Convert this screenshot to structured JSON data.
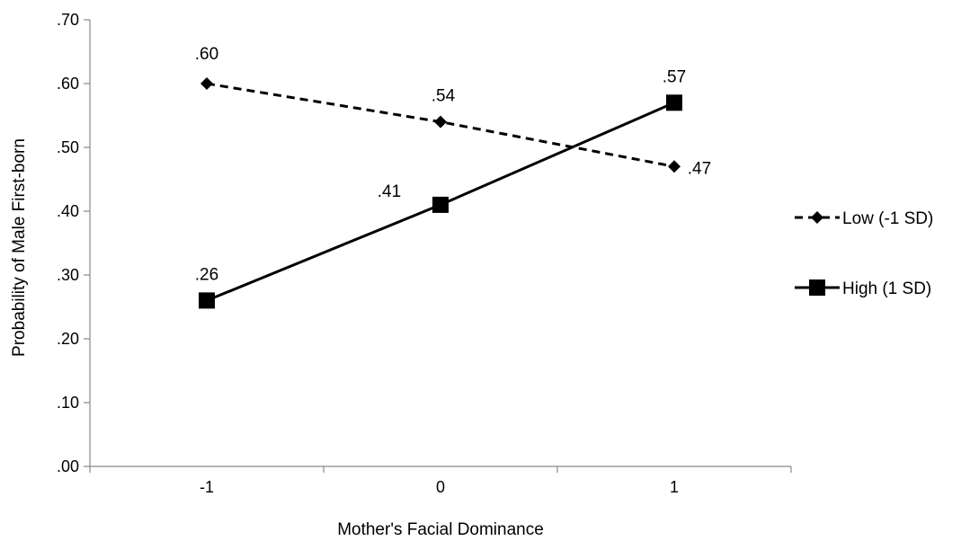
{
  "chart_data": {
    "type": "line",
    "title": "",
    "xlabel": "Mother's Facial Dominance",
    "ylabel": "Probability of Male First-born",
    "categories": [
      "-1",
      "0",
      "1"
    ],
    "x": [
      -1,
      0,
      1
    ],
    "xlim": [
      -1.5,
      1.5
    ],
    "ylim": [
      0,
      0.7
    ],
    "y_ticks": [
      0,
      0.1,
      0.2,
      0.3,
      0.4,
      0.5,
      0.6,
      0.7
    ],
    "y_tick_labels": [
      ".00",
      ".10",
      ".20",
      ".30",
      ".40",
      ".50",
      ".60",
      ".70"
    ],
    "grid": false,
    "legend_position": "right",
    "series": [
      {
        "name": "Low (-1 SD)",
        "values": [
          0.6,
          0.54,
          0.47
        ],
        "labels": [
          ".60",
          ".54",
          ".47"
        ],
        "line_style": "dashed",
        "marker": "diamond",
        "color": "#000000"
      },
      {
        "name": "High (1 SD)",
        "values": [
          0.26,
          0.41,
          0.57
        ],
        "labels": [
          ".26",
          ".41",
          ".57"
        ],
        "line_style": "solid",
        "marker": "square",
        "color": "#000000"
      }
    ]
  }
}
